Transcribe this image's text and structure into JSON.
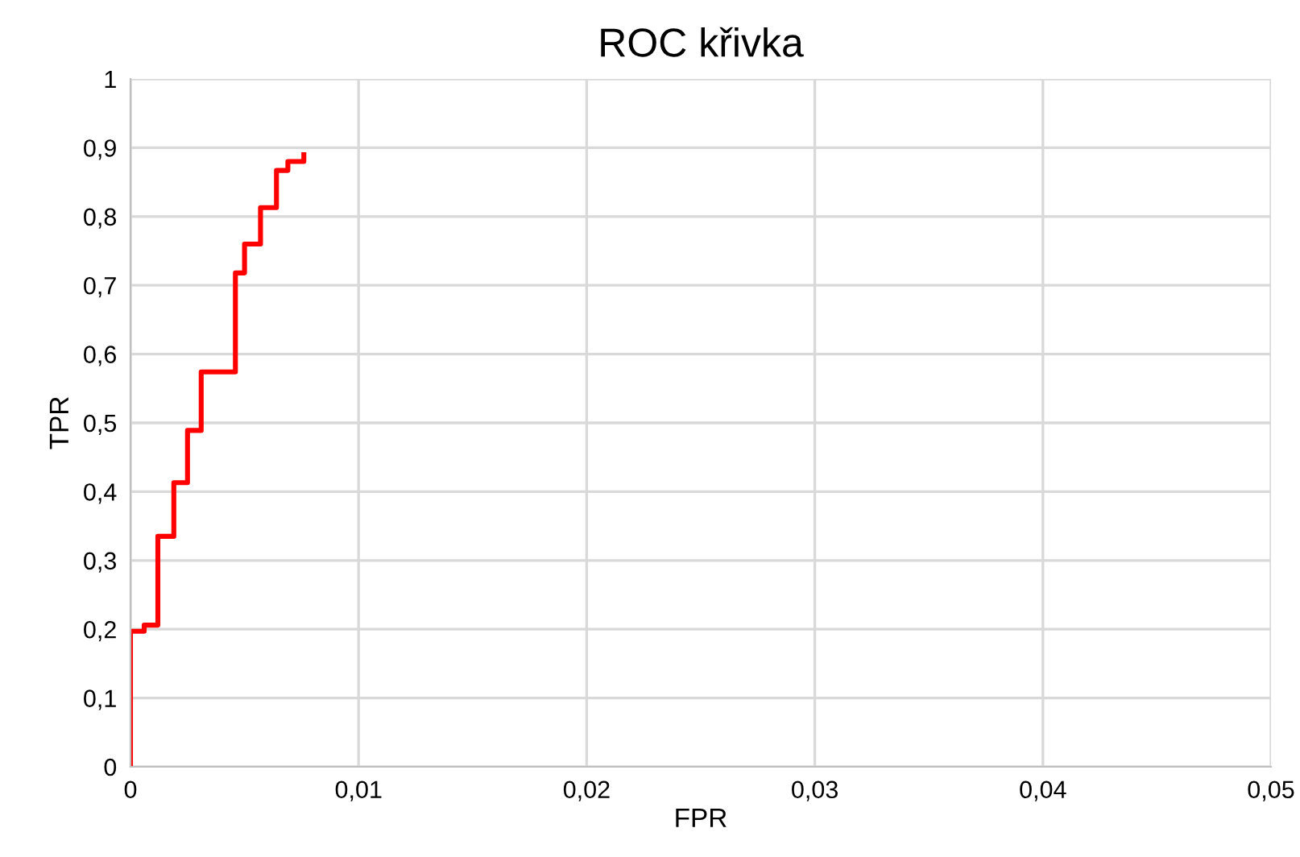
{
  "chart_data": {
    "type": "line",
    "title": "ROC křivka",
    "xlabel": "FPR",
    "ylabel": "TPR",
    "series": [
      {
        "color": "#ff0000",
        "x": [
          0,
          0,
          0.0006,
          0.0006,
          0.0012,
          0.0012,
          0.0019,
          0.0019,
          0.0025,
          0.0025,
          0.0031,
          0.0031,
          0.0046,
          0.0046,
          0.005,
          0.005,
          0.0057,
          0.0057,
          0.0064,
          0.0064,
          0.0069,
          0.0069,
          0.0076,
          0.0076
        ],
        "values": [
          0,
          0.197,
          0.197,
          0.206,
          0.206,
          0.335,
          0.335,
          0.413,
          0.413,
          0.489,
          0.489,
          0.574,
          0.574,
          0.718,
          0.718,
          0.76,
          0.76,
          0.813,
          0.813,
          0.867,
          0.867,
          0.88,
          0.88,
          0.89
        ]
      }
    ],
    "xlim": [
      0,
      0.05
    ],
    "xticks": [
      {
        "value": 0,
        "label": "0"
      },
      {
        "value": 0.01,
        "label": "0,01"
      },
      {
        "value": 0.02,
        "label": "0,02"
      },
      {
        "value": 0.03,
        "label": "0,03"
      },
      {
        "value": 0.04,
        "label": "0,04"
      },
      {
        "value": 0.05,
        "label": "0,05"
      }
    ],
    "ylim": [
      0,
      1
    ],
    "yticks": [
      {
        "value": 0,
        "label": "0"
      },
      {
        "value": 0.1,
        "label": "0,1"
      },
      {
        "value": 0.2,
        "label": "0,2"
      },
      {
        "value": 0.3,
        "label": "0,3"
      },
      {
        "value": 0.4,
        "label": "0,4"
      },
      {
        "value": 0.5,
        "label": "0,5"
      },
      {
        "value": 0.6,
        "label": "0,6"
      },
      {
        "value": 0.7,
        "label": "0,7"
      },
      {
        "value": 0.8,
        "label": "0,8"
      },
      {
        "value": 0.9,
        "label": "0,9"
      },
      {
        "value": 1,
        "label": "1"
      }
    ],
    "grid": true,
    "marker": "none",
    "line_style": "solid"
  }
}
